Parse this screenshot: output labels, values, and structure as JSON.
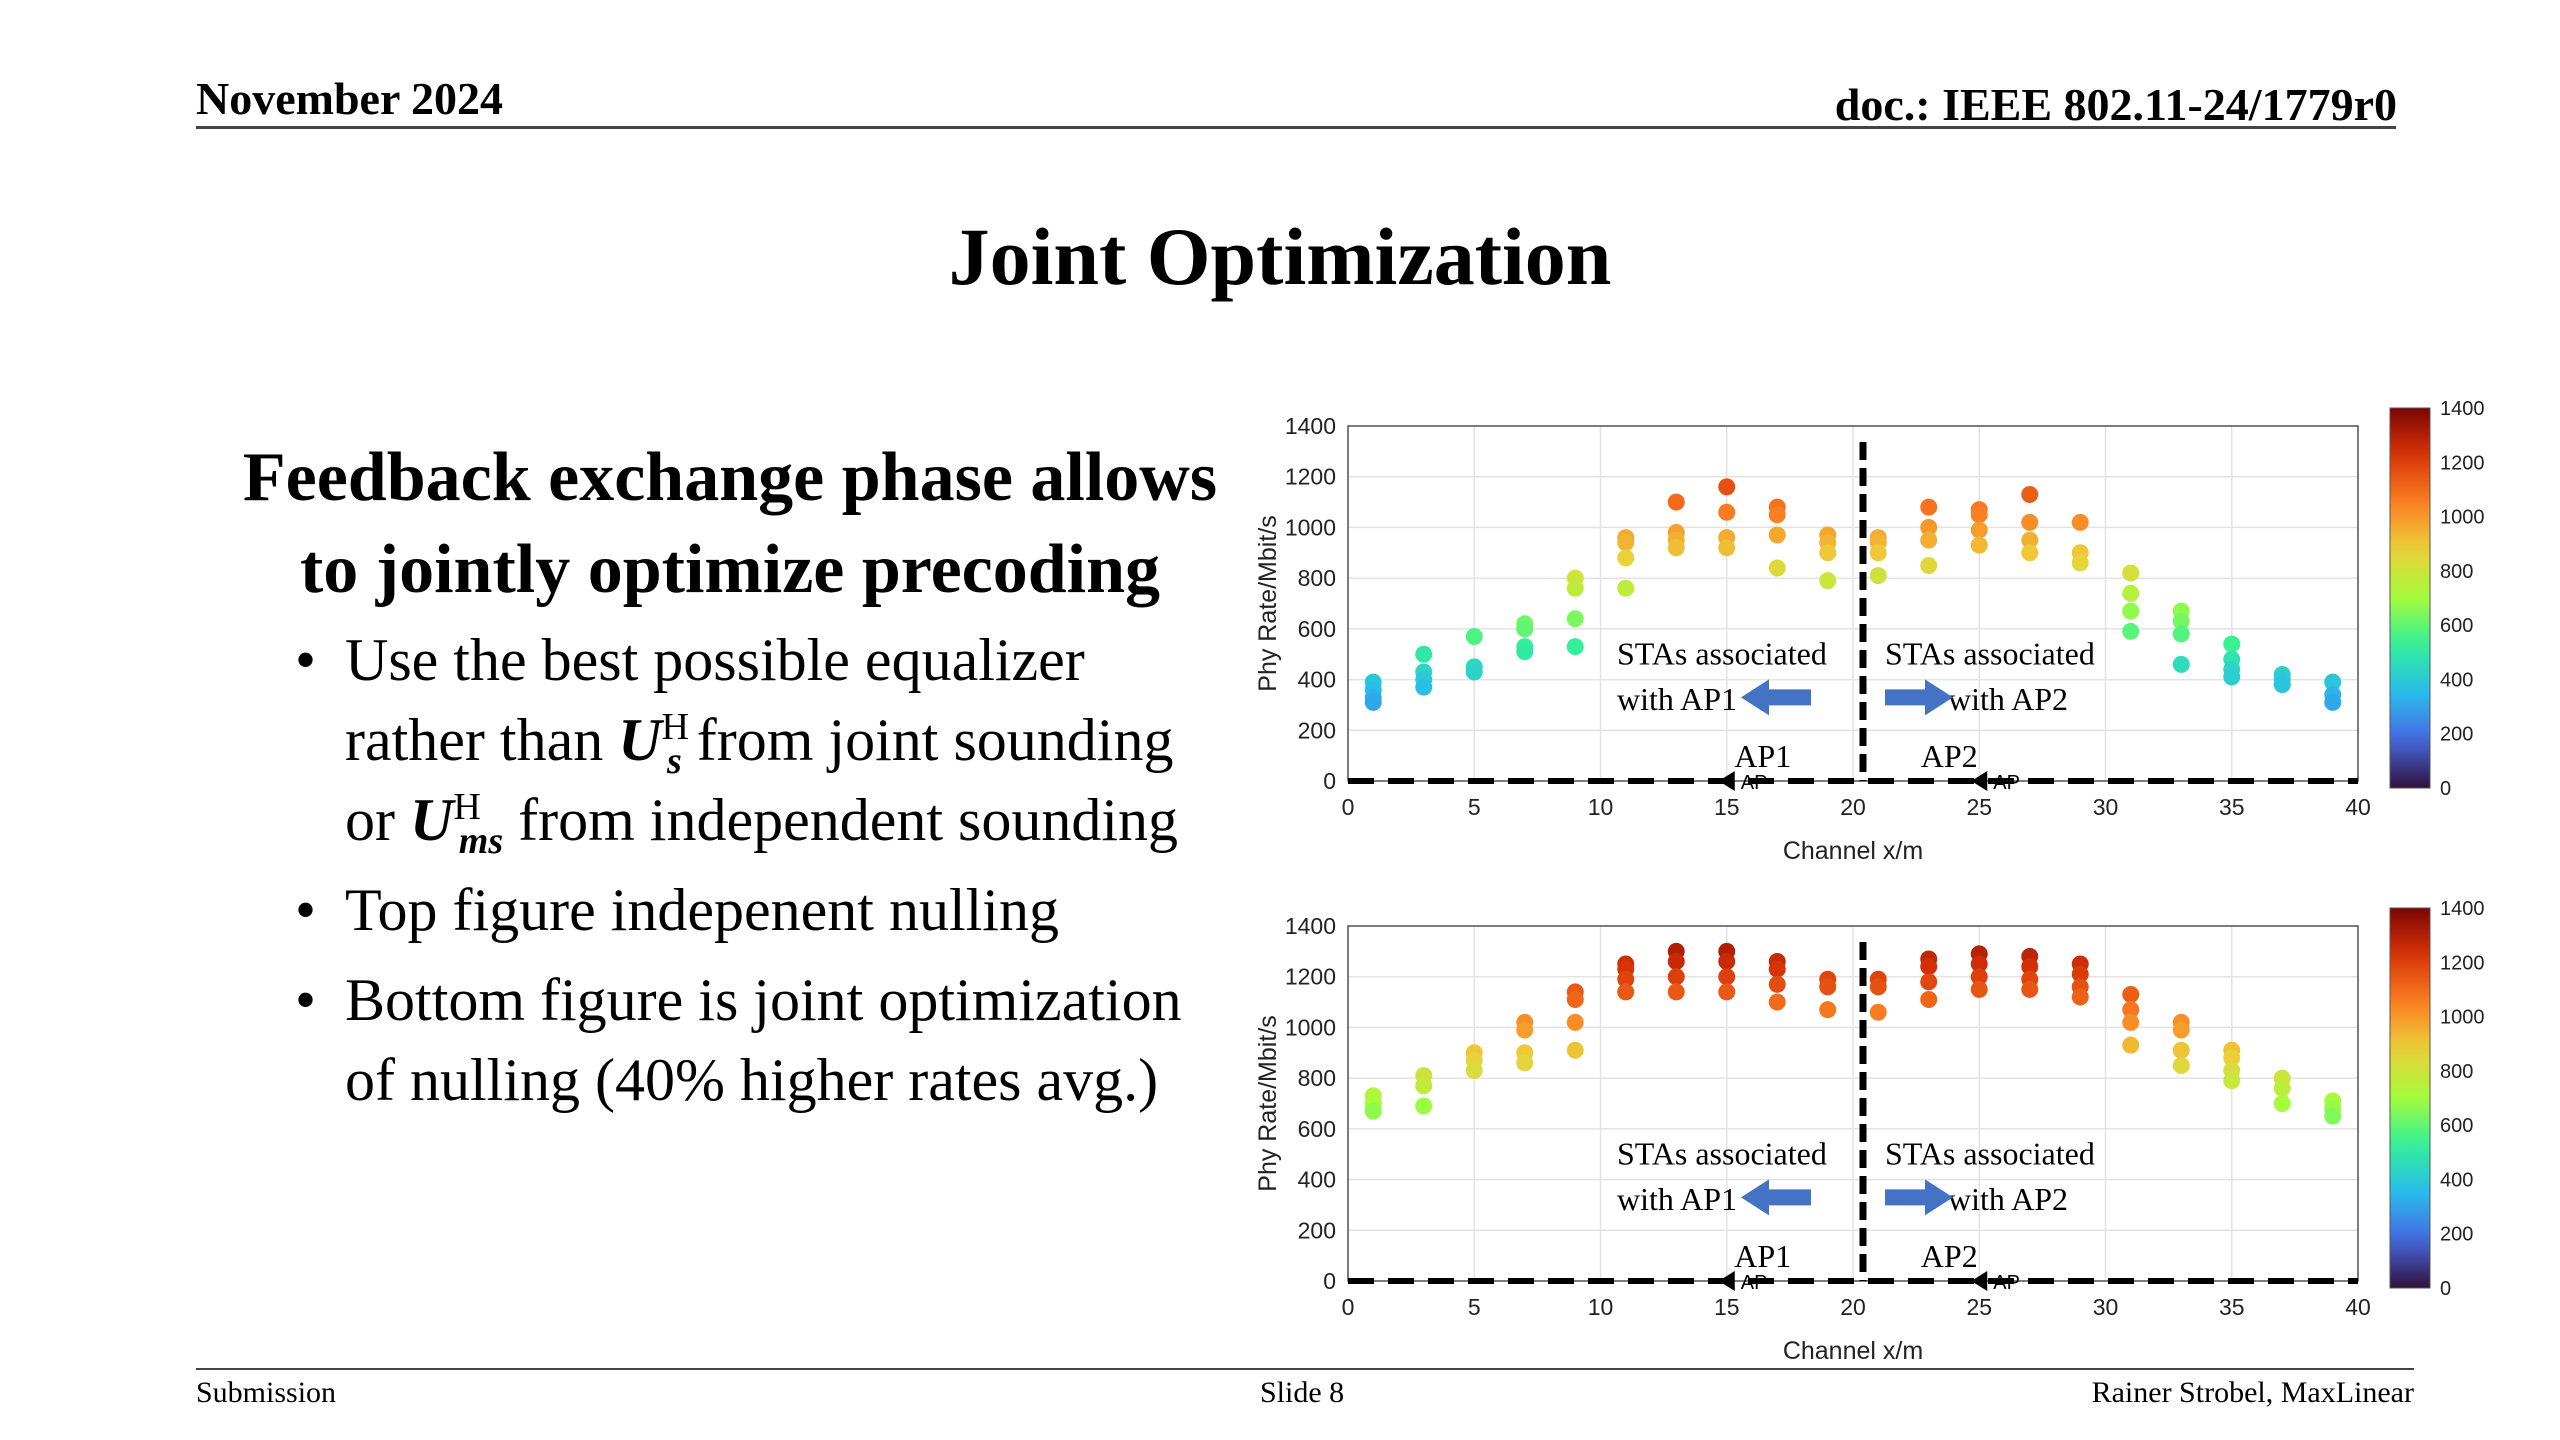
{
  "header": {
    "date": "November 2024",
    "doc": "doc.: IEEE 802.11-24/1779r0"
  },
  "title": "Joint Optimization",
  "lead": {
    "line1": "Feedback exchange phase allows",
    "line2": "to jointly optimize precoding"
  },
  "bullets": {
    "b1_l1": "Use the best possible equalizer",
    "b1_l2_a": "rather than ",
    "b1_l2_sym": "U",
    "b1_l2_sup": "H",
    "b1_l2_sub": "s",
    "b1_l2_b": " from joint sounding",
    "b1_l3_a": "or ",
    "b1_l3_sym": "U",
    "b1_l3_sup": "H",
    "b1_l3_sub": "ms",
    "b1_l3_b": " from independent sounding",
    "b2": "Top figure indepenent nulling",
    "b3_l1": "Bottom figure is joint optimization",
    "b3_l2": "of nulling (40% higher rates avg.)"
  },
  "footer": {
    "left": "Submission",
    "center": "Slide 8",
    "right": "Rainer Strobel, MaxLinear"
  },
  "chart_data": [
    {
      "type": "scatter",
      "xlabel": "Channel x/m",
      "ylabel": "Phy Rate/Mbit/s",
      "xlim": [
        0,
        40
      ],
      "ylim": [
        0,
        1400
      ],
      "xticks": [
        0,
        5,
        10,
        15,
        20,
        25,
        30,
        35,
        40
      ],
      "yticks": [
        0,
        200,
        400,
        600,
        800,
        1000,
        1200,
        1400
      ],
      "grid": true,
      "colorbar": {
        "ticks": [
          0,
          200,
          400,
          600,
          800,
          1000,
          1200,
          1400
        ],
        "range": [
          0,
          1400
        ]
      },
      "annotations": {
        "left_text_1": "STAs associated",
        "left_text_2": "with AP1",
        "right_text_1": "STAs associated",
        "right_text_2": "with AP2",
        "ap1": "AP1",
        "ap2": "AP2",
        "ap_marker": "AP"
      },
      "ap_positions": [
        15,
        25
      ],
      "divider_x": 20,
      "points": [
        [
          1,
          390
        ],
        [
          1,
          360
        ],
        [
          1,
          330
        ],
        [
          1,
          310
        ],
        [
          3,
          500
        ],
        [
          3,
          430
        ],
        [
          3,
          400
        ],
        [
          3,
          370
        ],
        [
          5,
          570
        ],
        [
          5,
          450
        ],
        [
          5,
          430
        ],
        [
          7,
          620
        ],
        [
          7,
          600
        ],
        [
          7,
          530
        ],
        [
          7,
          510
        ],
        [
          9,
          800
        ],
        [
          9,
          760
        ],
        [
          9,
          640
        ],
        [
          9,
          530
        ],
        [
          11,
          960
        ],
        [
          11,
          940
        ],
        [
          11,
          880
        ],
        [
          11,
          760
        ],
        [
          13,
          1100
        ],
        [
          13,
          980
        ],
        [
          13,
          950
        ],
        [
          13,
          920
        ],
        [
          15,
          1160
        ],
        [
          15,
          1060
        ],
        [
          15,
          960
        ],
        [
          15,
          920
        ],
        [
          17,
          1080
        ],
        [
          17,
          1050
        ],
        [
          17,
          970
        ],
        [
          17,
          840
        ],
        [
          19,
          970
        ],
        [
          19,
          940
        ],
        [
          19,
          900
        ],
        [
          19,
          790
        ],
        [
          21,
          960
        ],
        [
          21,
          940
        ],
        [
          21,
          900
        ],
        [
          21,
          810
        ],
        [
          23,
          1080
        ],
        [
          23,
          1000
        ],
        [
          23,
          950
        ],
        [
          23,
          850
        ],
        [
          25,
          1070
        ],
        [
          25,
          1050
        ],
        [
          25,
          990
        ],
        [
          25,
          930
        ],
        [
          27,
          1130
        ],
        [
          27,
          1020
        ],
        [
          27,
          950
        ],
        [
          27,
          900
        ],
        [
          29,
          1020
        ],
        [
          29,
          900
        ],
        [
          29,
          860
        ],
        [
          31,
          820
        ],
        [
          31,
          740
        ],
        [
          31,
          670
        ],
        [
          31,
          590
        ],
        [
          33,
          670
        ],
        [
          33,
          630
        ],
        [
          33,
          580
        ],
        [
          33,
          460
        ],
        [
          35,
          540
        ],
        [
          35,
          480
        ],
        [
          35,
          440
        ],
        [
          35,
          410
        ],
        [
          37,
          420
        ],
        [
          37,
          400
        ],
        [
          37,
          380
        ],
        [
          39,
          390
        ],
        [
          39,
          340
        ],
        [
          39,
          310
        ]
      ]
    },
    {
      "type": "scatter",
      "xlabel": "Channel x/m",
      "ylabel": "Phy Rate/Mbit/s",
      "xlim": [
        0,
        40
      ],
      "ylim": [
        0,
        1400
      ],
      "xticks": [
        0,
        5,
        10,
        15,
        20,
        25,
        30,
        35,
        40
      ],
      "yticks": [
        0,
        200,
        400,
        600,
        800,
        1000,
        1200,
        1400
      ],
      "grid": true,
      "colorbar": {
        "ticks": [
          0,
          200,
          400,
          600,
          800,
          1000,
          1200,
          1400
        ],
        "range": [
          0,
          1400
        ]
      },
      "annotations": {
        "left_text_1": "STAs associated",
        "left_text_2": "with AP1",
        "right_text_1": "STAs associated",
        "right_text_2": "with AP2",
        "ap1": "AP1",
        "ap2": "AP2",
        "ap_marker": "AP"
      },
      "ap_positions": [
        15,
        25
      ],
      "divider_x": 20,
      "points": [
        [
          1,
          730
        ],
        [
          1,
          700
        ],
        [
          1,
          670
        ],
        [
          3,
          810
        ],
        [
          3,
          770
        ],
        [
          3,
          690
        ],
        [
          5,
          900
        ],
        [
          5,
          870
        ],
        [
          5,
          830
        ],
        [
          7,
          1020
        ],
        [
          7,
          990
        ],
        [
          7,
          900
        ],
        [
          7,
          860
        ],
        [
          9,
          1140
        ],
        [
          9,
          1110
        ],
        [
          9,
          1020
        ],
        [
          9,
          910
        ],
        [
          11,
          1250
        ],
        [
          11,
          1230
        ],
        [
          11,
          1190
        ],
        [
          11,
          1140
        ],
        [
          13,
          1300
        ],
        [
          13,
          1260
        ],
        [
          13,
          1200
        ],
        [
          13,
          1140
        ],
        [
          15,
          1300
        ],
        [
          15,
          1260
        ],
        [
          15,
          1200
        ],
        [
          15,
          1140
        ],
        [
          17,
          1260
        ],
        [
          17,
          1230
        ],
        [
          17,
          1170
        ],
        [
          17,
          1100
        ],
        [
          19,
          1190
        ],
        [
          19,
          1160
        ],
        [
          19,
          1070
        ],
        [
          21,
          1190
        ],
        [
          21,
          1160
        ],
        [
          21,
          1060
        ],
        [
          23,
          1270
        ],
        [
          23,
          1240
        ],
        [
          23,
          1180
        ],
        [
          23,
          1110
        ],
        [
          25,
          1290
        ],
        [
          25,
          1250
        ],
        [
          25,
          1200
        ],
        [
          25,
          1150
        ],
        [
          27,
          1280
        ],
        [
          27,
          1240
        ],
        [
          27,
          1190
        ],
        [
          27,
          1150
        ],
        [
          29,
          1250
        ],
        [
          29,
          1210
        ],
        [
          29,
          1160
        ],
        [
          29,
          1120
        ],
        [
          31,
          1130
        ],
        [
          31,
          1070
        ],
        [
          31,
          1020
        ],
        [
          31,
          930
        ],
        [
          33,
          1020
        ],
        [
          33,
          990
        ],
        [
          33,
          910
        ],
        [
          33,
          850
        ],
        [
          35,
          910
        ],
        [
          35,
          880
        ],
        [
          35,
          830
        ],
        [
          35,
          790
        ],
        [
          37,
          800
        ],
        [
          37,
          760
        ],
        [
          37,
          700
        ],
        [
          39,
          710
        ],
        [
          39,
          680
        ],
        [
          39,
          650
        ]
      ]
    }
  ]
}
